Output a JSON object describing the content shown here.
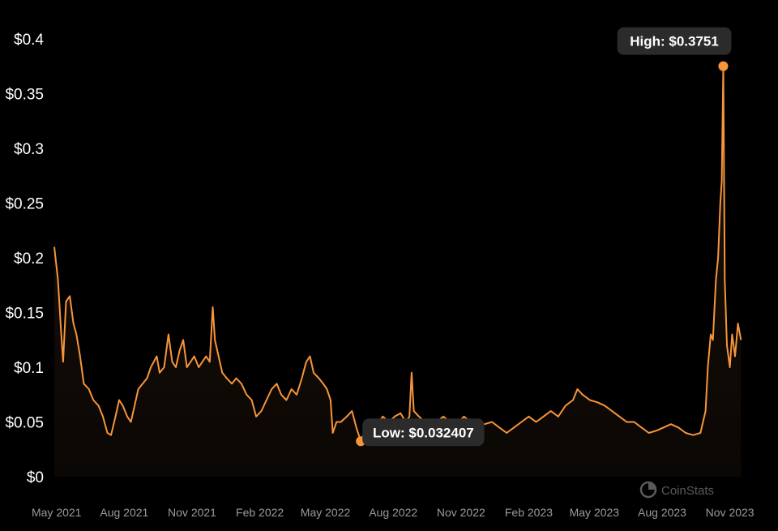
{
  "chart_data": {
    "type": "area",
    "ylim": [
      0,
      0.4
    ],
    "y_ticks": [
      "$0",
      "$0.05",
      "$0.1",
      "$0.15",
      "$0.2",
      "$0.25",
      "$0.3",
      "$0.35",
      "$0.4"
    ],
    "y_tick_values": [
      0,
      0.05,
      0.1,
      0.15,
      0.2,
      0.25,
      0.3,
      0.35,
      0.4
    ],
    "x_ticks": [
      "May 2021",
      "Aug 2021",
      "Nov 2021",
      "Feb 2022",
      "May 2022",
      "Aug 2022",
      "Nov 2022",
      "Feb 2023",
      "May 2023",
      "Aug 2023",
      "Nov 2023"
    ],
    "x_tick_dates": [
      "2021-05-01",
      "2021-08-01",
      "2021-11-01",
      "2022-02-01",
      "2022-05-01",
      "2022-08-01",
      "2022-11-01",
      "2023-02-01",
      "2023-05-01",
      "2023-08-01",
      "2023-11-01"
    ],
    "xlim": [
      "2021-04-28",
      "2023-11-19"
    ],
    "line_color": "#f7953b",
    "series": [
      {
        "points": [
          [
            "2021-04-28",
            0.21
          ],
          [
            "2021-05-03",
            0.18
          ],
          [
            "2021-05-07",
            0.135
          ],
          [
            "2021-05-10",
            0.105
          ],
          [
            "2021-05-14",
            0.16
          ],
          [
            "2021-05-19",
            0.165
          ],
          [
            "2021-05-24",
            0.14
          ],
          [
            "2021-05-28",
            0.13
          ],
          [
            "2021-06-02",
            0.11
          ],
          [
            "2021-06-07",
            0.085
          ],
          [
            "2021-06-14",
            0.08
          ],
          [
            "2021-06-20",
            0.07
          ],
          [
            "2021-06-27",
            0.065
          ],
          [
            "2021-07-03",
            0.055
          ],
          [
            "2021-07-09",
            0.04
          ],
          [
            "2021-07-14",
            0.038
          ],
          [
            "2021-07-20",
            0.055
          ],
          [
            "2021-07-25",
            0.07
          ],
          [
            "2021-07-30",
            0.065
          ],
          [
            "2021-08-05",
            0.055
          ],
          [
            "2021-08-10",
            0.05
          ],
          [
            "2021-08-15",
            0.065
          ],
          [
            "2021-08-20",
            0.08
          ],
          [
            "2021-08-26",
            0.085
          ],
          [
            "2021-09-01",
            0.09
          ],
          [
            "2021-09-06",
            0.1
          ],
          [
            "2021-09-10",
            0.105
          ],
          [
            "2021-09-14",
            0.11
          ],
          [
            "2021-09-18",
            0.095
          ],
          [
            "2021-09-24",
            0.1
          ],
          [
            "2021-09-30",
            0.13
          ],
          [
            "2021-10-05",
            0.105
          ],
          [
            "2021-10-10",
            0.1
          ],
          [
            "2021-10-15",
            0.115
          ],
          [
            "2021-10-20",
            0.125
          ],
          [
            "2021-10-25",
            0.1
          ],
          [
            "2021-10-30",
            0.105
          ],
          [
            "2021-11-04",
            0.11
          ],
          [
            "2021-11-10",
            0.1
          ],
          [
            "2021-11-15",
            0.105
          ],
          [
            "2021-11-20",
            0.11
          ],
          [
            "2021-11-25",
            0.105
          ],
          [
            "2021-11-29",
            0.155
          ],
          [
            "2021-12-02",
            0.125
          ],
          [
            "2021-12-07",
            0.11
          ],
          [
            "2021-12-12",
            0.095
          ],
          [
            "2021-12-18",
            0.09
          ],
          [
            "2021-12-25",
            0.085
          ],
          [
            "2021-12-31",
            0.09
          ],
          [
            "2022-01-07",
            0.085
          ],
          [
            "2022-01-14",
            0.075
          ],
          [
            "2022-01-21",
            0.07
          ],
          [
            "2022-01-27",
            0.055
          ],
          [
            "2022-02-03",
            0.06
          ],
          [
            "2022-02-10",
            0.07
          ],
          [
            "2022-02-17",
            0.08
          ],
          [
            "2022-02-24",
            0.085
          ],
          [
            "2022-03-02",
            0.075
          ],
          [
            "2022-03-09",
            0.07
          ],
          [
            "2022-03-16",
            0.08
          ],
          [
            "2022-03-23",
            0.075
          ],
          [
            "2022-03-30",
            0.09
          ],
          [
            "2022-04-05",
            0.105
          ],
          [
            "2022-04-10",
            0.11
          ],
          [
            "2022-04-15",
            0.095
          ],
          [
            "2022-04-22",
            0.09
          ],
          [
            "2022-04-28",
            0.085
          ],
          [
            "2022-05-03",
            0.08
          ],
          [
            "2022-05-08",
            0.07
          ],
          [
            "2022-05-11",
            0.04
          ],
          [
            "2022-05-16",
            0.05
          ],
          [
            "2022-05-22",
            0.05
          ],
          [
            "2022-05-30",
            0.055
          ],
          [
            "2022-06-06",
            0.06
          ],
          [
            "2022-06-12",
            0.045
          ],
          [
            "2022-06-18",
            0.0324
          ],
          [
            "2022-06-24",
            0.042
          ],
          [
            "2022-07-02",
            0.05
          ],
          [
            "2022-07-10",
            0.048
          ],
          [
            "2022-07-18",
            0.055
          ],
          [
            "2022-07-26",
            0.05
          ],
          [
            "2022-08-03",
            0.055
          ],
          [
            "2022-08-11",
            0.058
          ],
          [
            "2022-08-18",
            0.05
          ],
          [
            "2022-08-23",
            0.055
          ],
          [
            "2022-08-26",
            0.095
          ],
          [
            "2022-08-29",
            0.06
          ],
          [
            "2022-09-05",
            0.055
          ],
          [
            "2022-09-13",
            0.05
          ],
          [
            "2022-09-21",
            0.048
          ],
          [
            "2022-09-29",
            0.05
          ],
          [
            "2022-10-08",
            0.055
          ],
          [
            "2022-10-17",
            0.05
          ],
          [
            "2022-10-26",
            0.048
          ],
          [
            "2022-11-05",
            0.055
          ],
          [
            "2022-11-14",
            0.05
          ],
          [
            "2022-11-23",
            0.045
          ],
          [
            "2022-12-03",
            0.048
          ],
          [
            "2022-12-13",
            0.05
          ],
          [
            "2022-12-23",
            0.045
          ],
          [
            "2023-01-02",
            0.04
          ],
          [
            "2023-01-12",
            0.045
          ],
          [
            "2023-01-22",
            0.05
          ],
          [
            "2023-02-01",
            0.055
          ],
          [
            "2023-02-11",
            0.05
          ],
          [
            "2023-02-21",
            0.055
          ],
          [
            "2023-03-03",
            0.06
          ],
          [
            "2023-03-13",
            0.055
          ],
          [
            "2023-03-23",
            0.065
          ],
          [
            "2023-04-02",
            0.07
          ],
          [
            "2023-04-08",
            0.08
          ],
          [
            "2023-04-15",
            0.075
          ],
          [
            "2023-04-25",
            0.07
          ],
          [
            "2023-05-05",
            0.068
          ],
          [
            "2023-05-15",
            0.065
          ],
          [
            "2023-05-25",
            0.06
          ],
          [
            "2023-06-04",
            0.055
          ],
          [
            "2023-06-14",
            0.05
          ],
          [
            "2023-06-24",
            0.05
          ],
          [
            "2023-07-04",
            0.045
          ],
          [
            "2023-07-14",
            0.04
          ],
          [
            "2023-07-24",
            0.042
          ],
          [
            "2023-08-03",
            0.045
          ],
          [
            "2023-08-13",
            0.048
          ],
          [
            "2023-08-23",
            0.045
          ],
          [
            "2023-09-02",
            0.04
          ],
          [
            "2023-09-12",
            0.038
          ],
          [
            "2023-09-22",
            0.04
          ],
          [
            "2023-09-29",
            0.06
          ],
          [
            "2023-10-02",
            0.1
          ],
          [
            "2023-10-06",
            0.13
          ],
          [
            "2023-10-09",
            0.125
          ],
          [
            "2023-10-13",
            0.18
          ],
          [
            "2023-10-16",
            0.2
          ],
          [
            "2023-10-19",
            0.25
          ],
          [
            "2023-10-21",
            0.27
          ],
          [
            "2023-10-23",
            0.3751
          ],
          [
            "2023-10-25",
            0.18
          ],
          [
            "2023-10-28",
            0.12
          ],
          [
            "2023-11-01",
            0.1
          ],
          [
            "2023-11-04",
            0.13
          ],
          [
            "2023-11-08",
            0.11
          ],
          [
            "2023-11-12",
            0.14
          ],
          [
            "2023-11-16",
            0.125
          ]
        ]
      }
    ],
    "annotations": [
      {
        "label": "High: $0.3751",
        "date": "2023-10-23",
        "value": 0.3751,
        "placement": "above-left"
      },
      {
        "label": "Low: $0.032407",
        "date": "2022-06-18",
        "value": 0.032407,
        "placement": "right"
      }
    ],
    "grid": false,
    "legend": "none"
  },
  "watermark": {
    "text": "CoinStats",
    "icon": "coinstats-logo-icon"
  }
}
